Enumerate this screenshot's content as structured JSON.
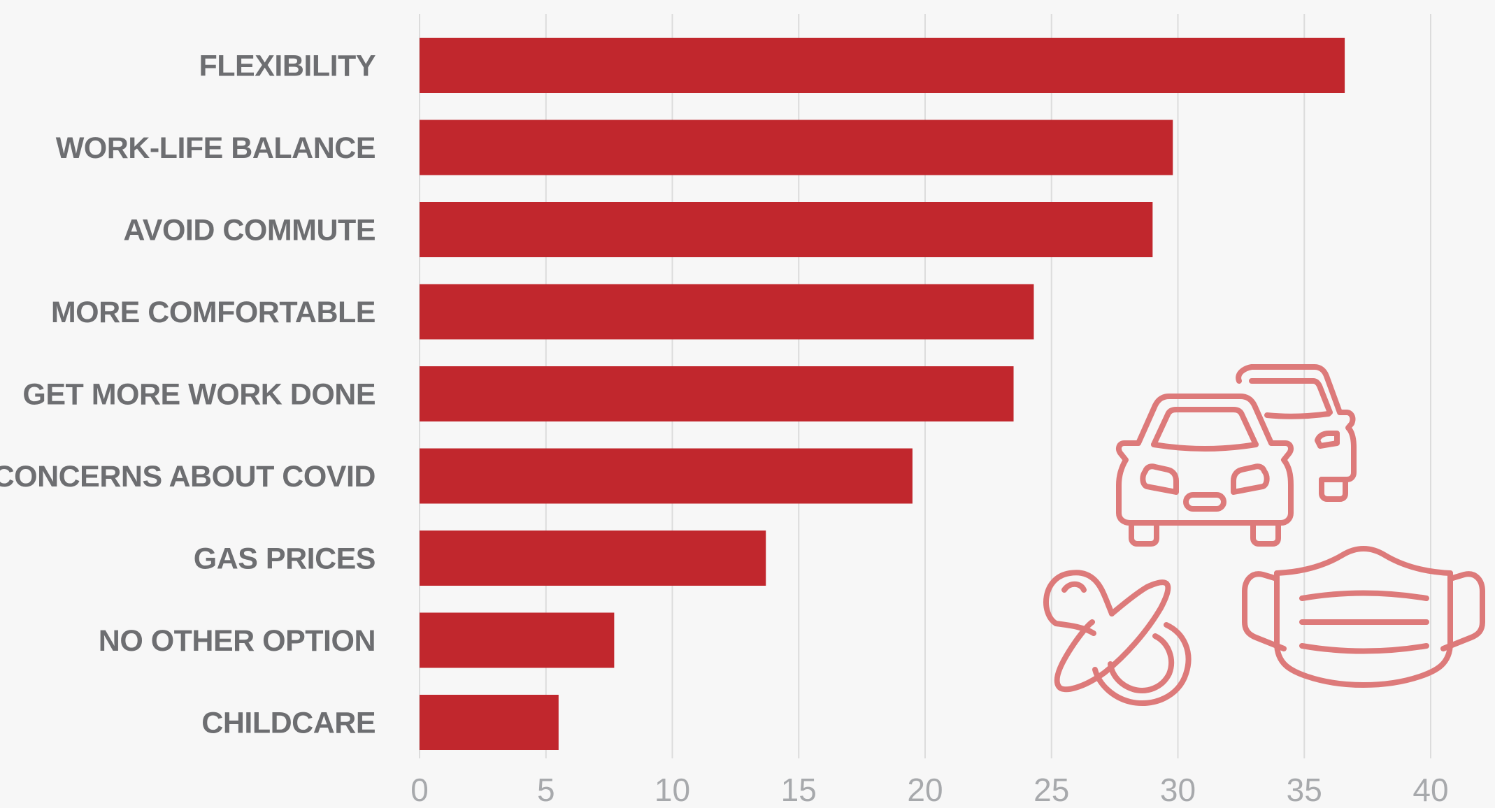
{
  "chart_data": {
    "type": "bar",
    "orientation": "horizontal",
    "categories": [
      "FLEXIBILITY",
      "WORK-LIFE BALANCE",
      "AVOID COMMUTE",
      "MORE COMFORTABLE",
      "GET MORE WORK DONE",
      "CONCERNS ABOUT COVID",
      "GAS PRICES",
      "NO OTHER OPTION",
      "CHILDCARE"
    ],
    "values": [
      36.6,
      29.8,
      29.0,
      24.3,
      23.5,
      19.5,
      13.7,
      7.7,
      5.5
    ],
    "xticks": [
      "0",
      "5",
      "10",
      "15",
      "20",
      "25",
      "30",
      "35",
      "40"
    ],
    "xlim": [
      0,
      40
    ],
    "grid": true,
    "title": "",
    "xlabel": "",
    "ylabel": "",
    "colors": {
      "bar": "#c1272d",
      "label": "#6d6e71",
      "tick": "#a7a9ac",
      "grid": "#dcdcdc",
      "icon": "#dd7a7a",
      "background": "#f7f7f7"
    },
    "icons": [
      "cars-icon",
      "pacifier-icon",
      "face-mask-icon"
    ]
  }
}
